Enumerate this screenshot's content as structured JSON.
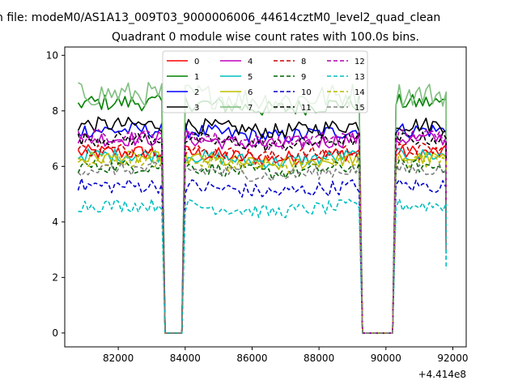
{
  "figure": {
    "suptitle": "n file: modeM0/AS1A13_009T03_9000006006_44614cztM0_level2_quad_clean",
    "title": "Quadrant 0 module wise count rates with 100.0s bins.",
    "offset_label": "+4.414e8"
  },
  "chart_data": {
    "type": "line",
    "title": "Quadrant 0 module wise count rates with 100.0s bins.",
    "xlabel": "",
    "ylabel": "",
    "x_offset": 441400000,
    "xlim": [
      80400,
      92400
    ],
    "ylim": [
      -0.5,
      10.3
    ],
    "xticks": [
      82000,
      84000,
      86000,
      88000,
      90000,
      92000
    ],
    "xtick_labels": [
      "82000",
      "84000",
      "86000",
      "88000",
      "90000",
      "92000"
    ],
    "yticks": [
      0,
      2,
      4,
      6,
      8,
      10
    ],
    "ytick_labels": [
      "0",
      "2",
      "4",
      "6",
      "8",
      "10"
    ],
    "grid": false,
    "legend_placement": "top-center",
    "legend_columns": 4,
    "bin_seconds": 100,
    "x_start": 80800,
    "x_end": 91800,
    "gaps": [
      [
        83400,
        83900
      ],
      [
        89300,
        90200
      ]
    ],
    "series": [
      {
        "name": "0",
        "color": "#ff0000",
        "dash": "solid",
        "level": 6.5,
        "noise": 0.28
      },
      {
        "name": "1",
        "color": "#008000",
        "dash": "solid",
        "level": 8.3,
        "noise": 0.3
      },
      {
        "name": "2",
        "color": "#0000ff",
        "dash": "solid",
        "level": 7.3,
        "noise": 0.28
      },
      {
        "name": "3",
        "color": "#000000",
        "dash": "solid",
        "level": 7.5,
        "noise": 0.28
      },
      {
        "name": "4",
        "color": "#bf00bf",
        "dash": "solid",
        "level": 7.0,
        "noise": 0.28
      },
      {
        "name": "5",
        "color": "#00bfbf",
        "dash": "solid",
        "level": 6.4,
        "noise": 0.25
      },
      {
        "name": "6",
        "color": "#bfbf00",
        "dash": "solid",
        "level": 6.3,
        "noise": 0.25
      },
      {
        "name": "7",
        "color": "#7fbf7f",
        "dash": "solid",
        "level": 8.6,
        "noise": 0.45
      },
      {
        "name": "8",
        "color": "#cc0000",
        "dash": "dashed",
        "level": 6.6,
        "noise": 0.25
      },
      {
        "name": "9",
        "color": "#006400",
        "dash": "dashed",
        "level": 6.0,
        "noise": 0.25
      },
      {
        "name": "10",
        "color": "#0000cc",
        "dash": "dashed",
        "level": 5.3,
        "noise": 0.28
      },
      {
        "name": "11",
        "color": "#000000",
        "dash": "dashed",
        "level": 7.0,
        "noise": 0.25
      },
      {
        "name": "12",
        "color": "#b000b0",
        "dash": "dashed",
        "level": 7.1,
        "noise": 0.25
      },
      {
        "name": "13",
        "color": "#00bfbf",
        "dash": "dashed",
        "level": 4.6,
        "noise": 0.25
      },
      {
        "name": "14",
        "color": "#b8b800",
        "dash": "dashed",
        "level": 6.2,
        "noise": 0.25
      },
      {
        "name": "15",
        "color": "#808080",
        "dash": "dashed",
        "level": 5.9,
        "noise": 0.25
      }
    ]
  }
}
